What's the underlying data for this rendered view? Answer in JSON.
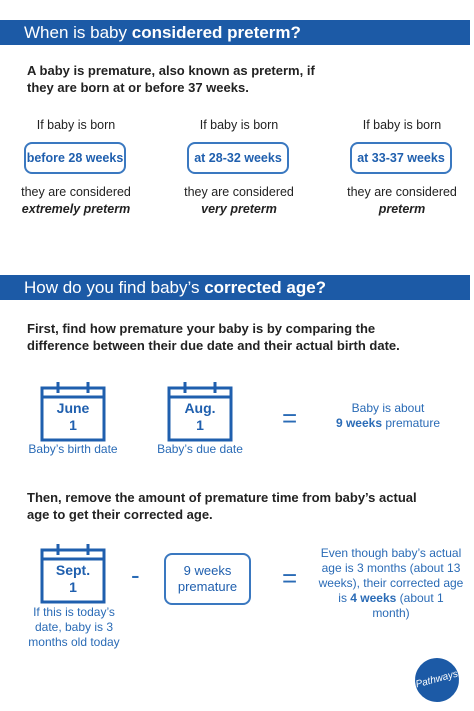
{
  "section1": {
    "heading": {
      "plain": "When is baby ",
      "bold": "considered preterm?"
    },
    "intro": "A baby is premature, also known as preterm, if they are born at or before 37 weeks.",
    "columns": [
      {
        "lead": "If baby is born",
        "box": "before 28 weeks",
        "result": "they are considered",
        "term": "extremely preterm"
      },
      {
        "lead": "If baby is born",
        "box": "at 28-32 weeks",
        "result": "they are considered",
        "term": "very preterm"
      },
      {
        "lead": "If baby is born",
        "box": "at 33-37 weeks",
        "result": "they are considered",
        "term": "preterm"
      }
    ]
  },
  "section2": {
    "heading": {
      "plain": "How do you find baby’s ",
      "bold": "corrected age?"
    },
    "step1": "First, find how premature your baby is by comparing the difference  between their due date and their actual birth date.",
    "calendars": [
      {
        "month": "June",
        "day": "1",
        "caption": "Baby’s birth date"
      },
      {
        "month": "Aug.",
        "day": "1",
        "caption": "Baby’s due date"
      }
    ],
    "equals1": "=",
    "result1": {
      "text": "Baby is about",
      "bold": "9 weeks",
      "rest": " premature"
    },
    "step2": "Then, remove the amount of premature time from baby’s actual age to get their corrected age.",
    "calendar3": {
      "month": "Sept.",
      "day": "1",
      "caption": "If this is today’s date, baby is 3 months old today"
    },
    "minus": "-",
    "box": "9 weeks premature",
    "equals2": "=",
    "result2": {
      "text": "Even though baby’s actual age is 3 months (about 13 weeks), their corrected age is ",
      "bold": "4 weeks",
      "rest": " (about 1 month)"
    }
  },
  "logo": "Pathways"
}
